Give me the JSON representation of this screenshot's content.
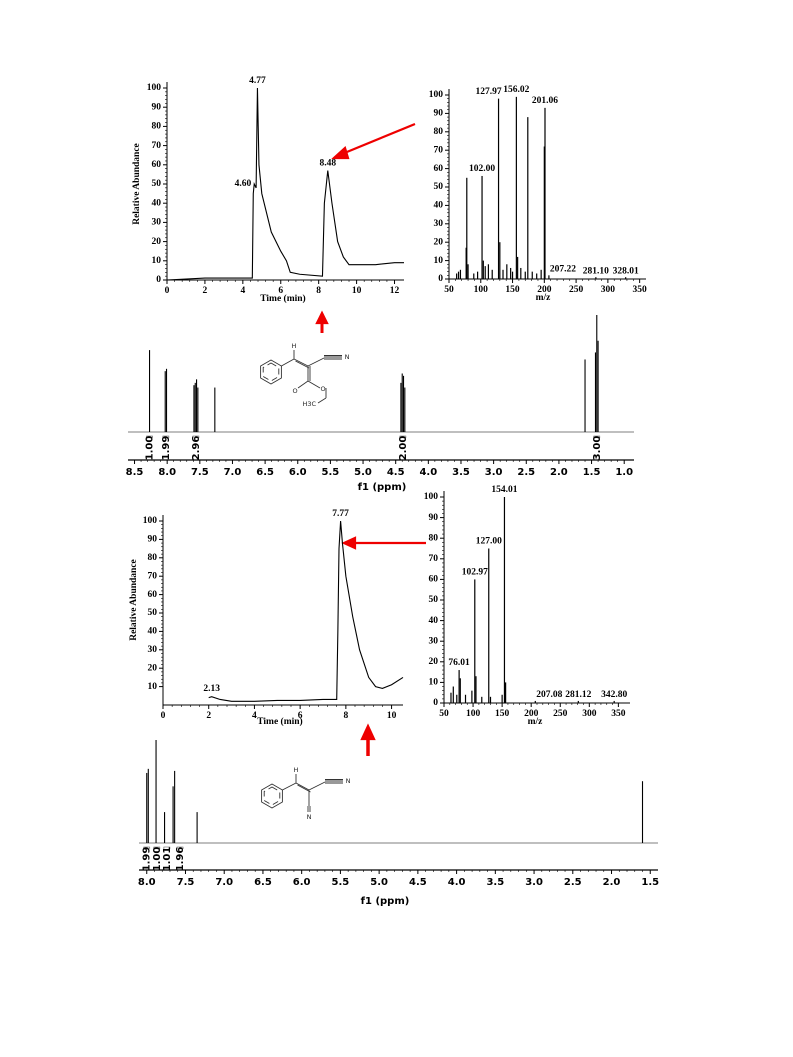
{
  "chart_data": [
    {
      "type": "line",
      "ylabel": "Relative Abundance",
      "xlabel": "Time (min)",
      "xlim": [
        0,
        12.5
      ],
      "ylim": [
        0,
        100
      ],
      "xticks": [
        0,
        2,
        4,
        6,
        8,
        10,
        12
      ],
      "yticks": [
        0,
        10,
        20,
        30,
        40,
        50,
        60,
        70,
        80,
        90,
        100
      ],
      "color": "#000000",
      "x": [
        0,
        2,
        4.5,
        4.55,
        4.6,
        4.7,
        4.77,
        4.85,
        5,
        5.5,
        6,
        6.3,
        6.5,
        7,
        8.2,
        8.3,
        8.48,
        8.7,
        9,
        9.3,
        9.6,
        10,
        11,
        12,
        12.5
      ],
      "values": [
        0,
        1,
        1,
        45,
        50,
        48,
        100,
        60,
        45,
        25,
        15,
        10,
        4,
        3,
        2,
        40,
        57,
        40,
        20,
        12,
        8,
        8,
        8,
        9,
        9
      ],
      "annotations": [
        {
          "label": "4.77",
          "x": 4.77,
          "y": 100
        },
        {
          "label": "4.60",
          "x": 4.6,
          "y": 50
        },
        {
          "label": "8.48",
          "x": 8.48,
          "y": 57
        }
      ]
    },
    {
      "type": "stem",
      "xlabel": "m/z",
      "xlim": [
        50,
        360
      ],
      "ylim": [
        0,
        100
      ],
      "xticks": [
        50,
        100,
        150,
        200,
        250,
        300,
        350
      ],
      "yticks": [
        0,
        10,
        20,
        30,
        40,
        50,
        60,
        70,
        80,
        90,
        100
      ],
      "color": "#000000",
      "x": [
        62,
        65,
        68,
        77,
        78,
        80,
        89,
        95,
        102.0,
        104,
        107,
        112,
        118,
        127.97,
        130,
        135,
        141,
        147,
        150,
        156.02,
        158,
        163,
        170,
        174,
        181,
        188,
        195,
        200,
        201.06,
        207.22,
        281.1,
        328.01
      ],
      "values": [
        3,
        4,
        5,
        17,
        55,
        8,
        3,
        4,
        56,
        10,
        7,
        8,
        5,
        98,
        20,
        5,
        8,
        6,
        4,
        99,
        12,
        6,
        4,
        88,
        4,
        3,
        5,
        72,
        93,
        2,
        1,
        1
      ],
      "annotations": [
        {
          "label": "127.97",
          "x": 127.97,
          "y": 98
        },
        {
          "label": "156.02",
          "x": 156.02,
          "y": 99
        },
        {
          "label": "201.06",
          "x": 201.06,
          "y": 93
        },
        {
          "label": "102.00",
          "x": 102.0,
          "y": 56
        },
        {
          "label": "207.22",
          "x": 207.22,
          "y": 2
        },
        {
          "label": "281.10",
          "x": 281.1,
          "y": 1
        },
        {
          "label": "328.01",
          "x": 328.01,
          "y": 1
        }
      ]
    },
    {
      "type": "nmr",
      "xlabel": "f1 (ppm)",
      "xlim": [
        8.6,
        0.85
      ],
      "ylim": [
        0,
        100
      ],
      "xticks": [
        8.5,
        {
          "value": 8,
          "label": "8.0"
        },
        7.5,
        {
          "value": 7,
          "label": "7.0"
        },
        6.5,
        {
          "value": 6,
          "label": "6.0"
        },
        5.5,
        {
          "value": 5,
          "label": "5.0"
        },
        4.5,
        {
          "value": 4,
          "label": "4.0"
        },
        3.5,
        {
          "value": 3,
          "label": "3.0"
        },
        2.5,
        {
          "value": 2,
          "label": "2.0"
        },
        1.5,
        {
          "value": 1,
          "label": "1.0"
        }
      ],
      "color": "#000000",
      "x": [
        8.27,
        8.03,
        8.01,
        7.59,
        7.57,
        7.55,
        7.53,
        7.27,
        4.42,
        4.4,
        4.38,
        4.36,
        1.6,
        1.44,
        1.42,
        1.4
      ],
      "values": [
        70,
        52,
        54,
        40,
        42,
        45,
        38,
        38,
        42,
        50,
        48,
        38,
        62,
        68,
        100,
        78
      ],
      "integrals": [
        {
          "label": "1.00",
          "x": 8.27
        },
        {
          "label": "1.99",
          "x": 8.02
        },
        {
          "label": "2.96",
          "x": 7.56
        },
        {
          "label": "2.00",
          "x": 4.39
        },
        {
          "label": "3.00",
          "x": 1.42
        }
      ],
      "structure": {
        "atoms": [
          "H",
          "N",
          "O",
          "O",
          "H3C"
        ]
      }
    },
    {
      "type": "line",
      "ylabel": "Relative Abundance",
      "xlabel": "Time (min)",
      "xlim": [
        0,
        10.5
      ],
      "ylim": [
        0,
        100
      ],
      "xticks": [
        0,
        2,
        4,
        6,
        8,
        10
      ],
      "yticks": [
        10,
        20,
        30,
        40,
        50,
        60,
        70,
        80,
        90,
        100
      ],
      "color": "#000000",
      "x": [
        2,
        2.13,
        2.5,
        3,
        4,
        5,
        6,
        7,
        7.6,
        7.65,
        7.7,
        7.77,
        7.85,
        8,
        8.3,
        8.6,
        9,
        9.3,
        9.6,
        10,
        10.5
      ],
      "values": [
        4,
        4.5,
        3,
        2,
        2,
        2.5,
        2.5,
        3,
        3,
        40,
        85,
        100,
        88,
        70,
        48,
        30,
        15,
        10,
        9,
        11,
        15
      ],
      "annotations": [
        {
          "label": "7.77",
          "x": 7.77,
          "y": 100
        },
        {
          "label": "2.13",
          "x": 2.13,
          "y": 4.5
        }
      ]
    },
    {
      "type": "stem",
      "xlabel": "m/z",
      "xlim": [
        50,
        370
      ],
      "ylim": [
        0,
        100
      ],
      "xticks": [
        50,
        100,
        150,
        200,
        250,
        300,
        350
      ],
      "yticks": [
        0,
        10,
        20,
        30,
        40,
        50,
        60,
        70,
        80,
        90,
        100
      ],
      "color": "#000000",
      "x": [
        62,
        66,
        72,
        76.01,
        78,
        87,
        98,
        102.97,
        105,
        115,
        127.0,
        130,
        150,
        154.01,
        156,
        207.08,
        281.12,
        342.8
      ],
      "values": [
        5,
        8,
        4,
        16,
        12,
        4,
        6,
        60,
        13,
        3,
        75,
        3,
        4,
        100,
        10,
        1,
        1,
        1
      ],
      "annotations": [
        {
          "label": "154.01",
          "x": 154.01,
          "y": 100
        },
        {
          "label": "127.00",
          "x": 127.0,
          "y": 75
        },
        {
          "label": "102.97",
          "x": 102.97,
          "y": 60
        },
        {
          "label": "76.01",
          "x": 76.01,
          "y": 16
        },
        {
          "label": "207.08",
          "x": 207.08,
          "y": 1
        },
        {
          "label": "281.12",
          "x": 281.12,
          "y": 1
        },
        {
          "label": "342.80",
          "x": 342.8,
          "y": 1
        }
      ]
    },
    {
      "type": "nmr",
      "xlabel": "f1 (ppm)",
      "xlim": [
        8.1,
        1.4
      ],
      "ylim": [
        0,
        100
      ],
      "xticks": [
        {
          "value": 8,
          "label": "8.0"
        },
        7.5,
        {
          "value": 7,
          "label": "7.0"
        },
        6.5,
        {
          "value": 6,
          "label": "6.0"
        },
        5.5,
        {
          "value": 5,
          "label": "5.0"
        },
        4.5,
        {
          "value": 4,
          "label": "4.0"
        },
        3.5,
        {
          "value": 3,
          "label": "3.0"
        },
        2.5,
        {
          "value": 2,
          "label": "2.0"
        },
        1.5
      ],
      "color": "#000000",
      "x": [
        8.0,
        7.98,
        7.88,
        7.77,
        7.66,
        7.64,
        7.35,
        1.6
      ],
      "values": [
        68,
        72,
        100,
        30,
        55,
        70,
        30,
        60
      ],
      "integrals": [
        {
          "label": "1.99",
          "x": 8.0
        },
        {
          "label": "1.00",
          "x": 7.87
        },
        {
          "label": "1.01",
          "x": 7.74
        },
        {
          "label": "1.96",
          "x": 7.57
        }
      ],
      "structure": {
        "atoms": [
          "H",
          "N",
          "N"
        ]
      }
    }
  ]
}
